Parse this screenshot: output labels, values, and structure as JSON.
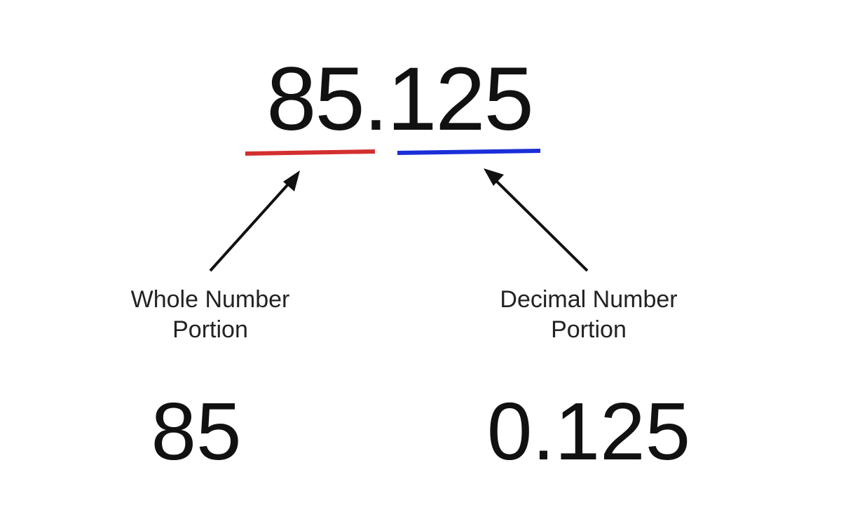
{
  "number": "85.125",
  "whole_part": {
    "label_line1": "Whole Number",
    "label_line2": "Portion",
    "value": "85",
    "underline_color": "#d32f2f"
  },
  "decimal_part": {
    "label_line1": "Decimal Number",
    "label_line2": "Portion",
    "value": "0.125",
    "underline_color": "#1a2fd8"
  }
}
